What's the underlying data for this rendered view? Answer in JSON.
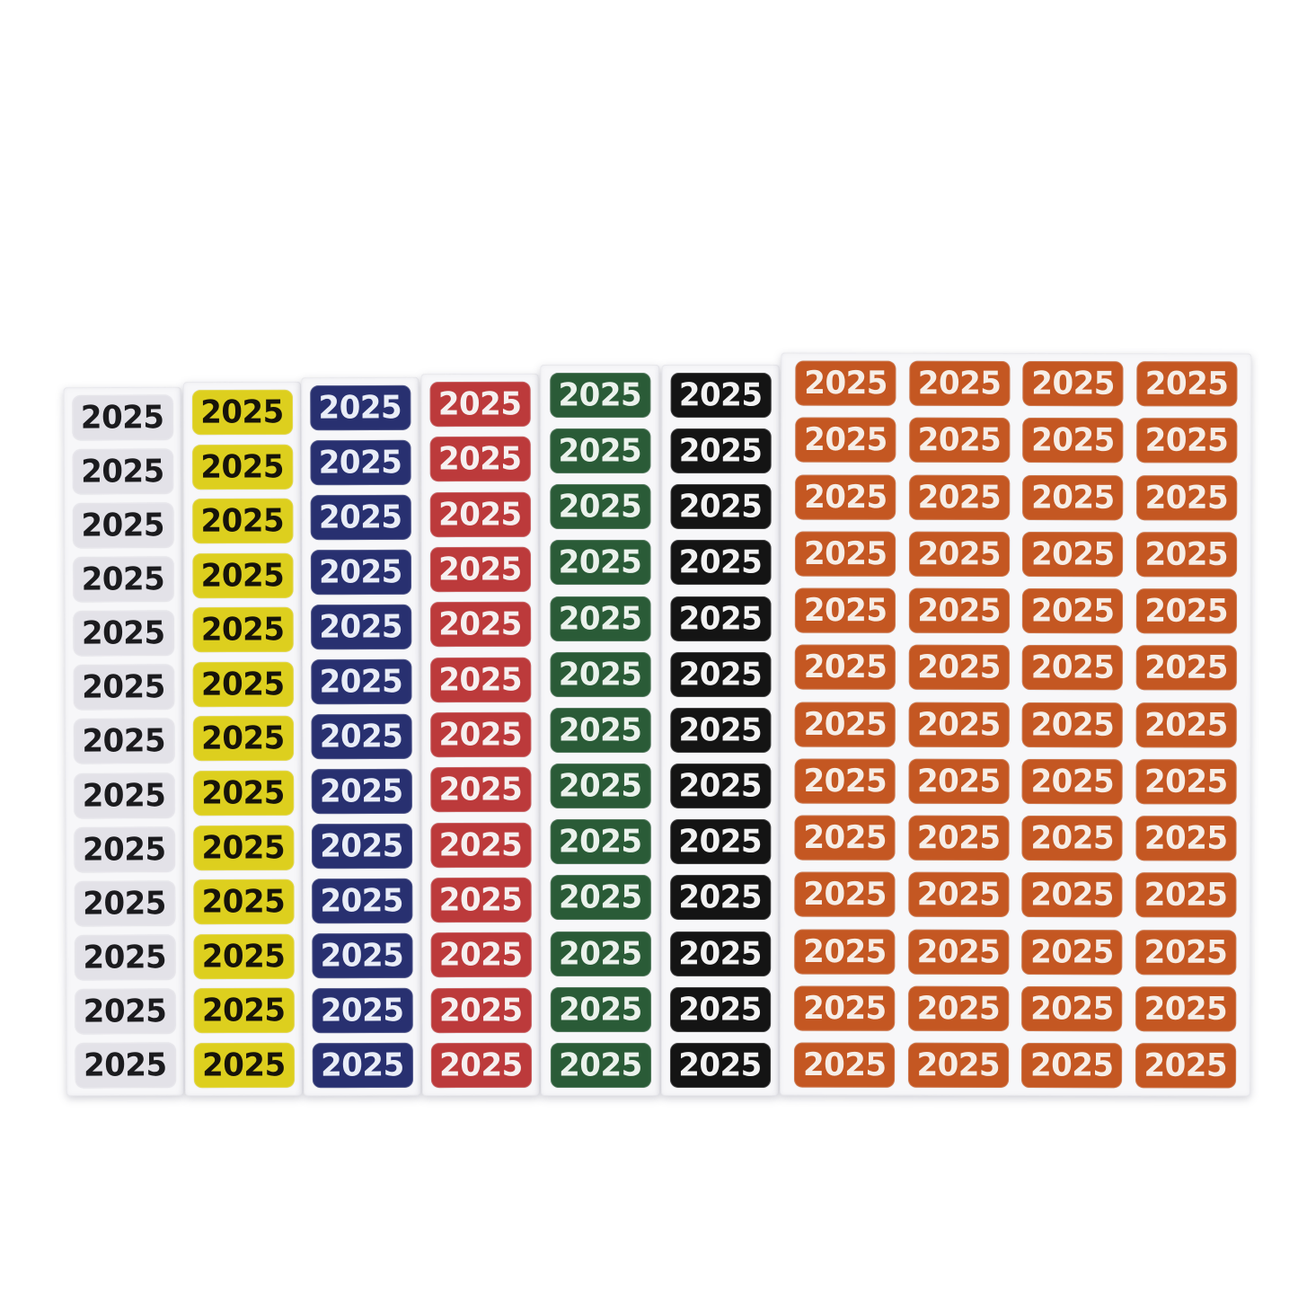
{
  "photo": {
    "description": "Seven sheets of self-adhesive year labels fanned side by side on a white background; six single-column strips and one four-column sheet, every sticker printed with the same year.",
    "label_text": "2025",
    "background_color": "#ffffff",
    "paper_color": "#f7f7f9",
    "stickers_per_column": 13
  },
  "sheets": [
    {
      "name": "white",
      "columns": 1,
      "rows": 13,
      "sticker_color": "#e3e2e8",
      "text_color": "#1b1b1e"
    },
    {
      "name": "yellow",
      "columns": 1,
      "rows": 13,
      "sticker_color": "#ddcf1e",
      "text_color": "#16130a"
    },
    {
      "name": "blue",
      "columns": 1,
      "rows": 13,
      "sticker_color": "#283070",
      "text_color": "#e9edf7"
    },
    {
      "name": "red",
      "columns": 1,
      "rows": 13,
      "sticker_color": "#bc3a3b",
      "text_color": "#f6f0f0"
    },
    {
      "name": "green",
      "columns": 1,
      "rows": 13,
      "sticker_color": "#2a5b37",
      "text_color": "#ebf2ec"
    },
    {
      "name": "black",
      "columns": 1,
      "rows": 13,
      "sticker_color": "#141414",
      "text_color": "#f3f3f3"
    },
    {
      "name": "orange",
      "columns": 4,
      "rows": 13,
      "sticker_color": "#c45722",
      "text_color": "#f6eee7"
    }
  ]
}
